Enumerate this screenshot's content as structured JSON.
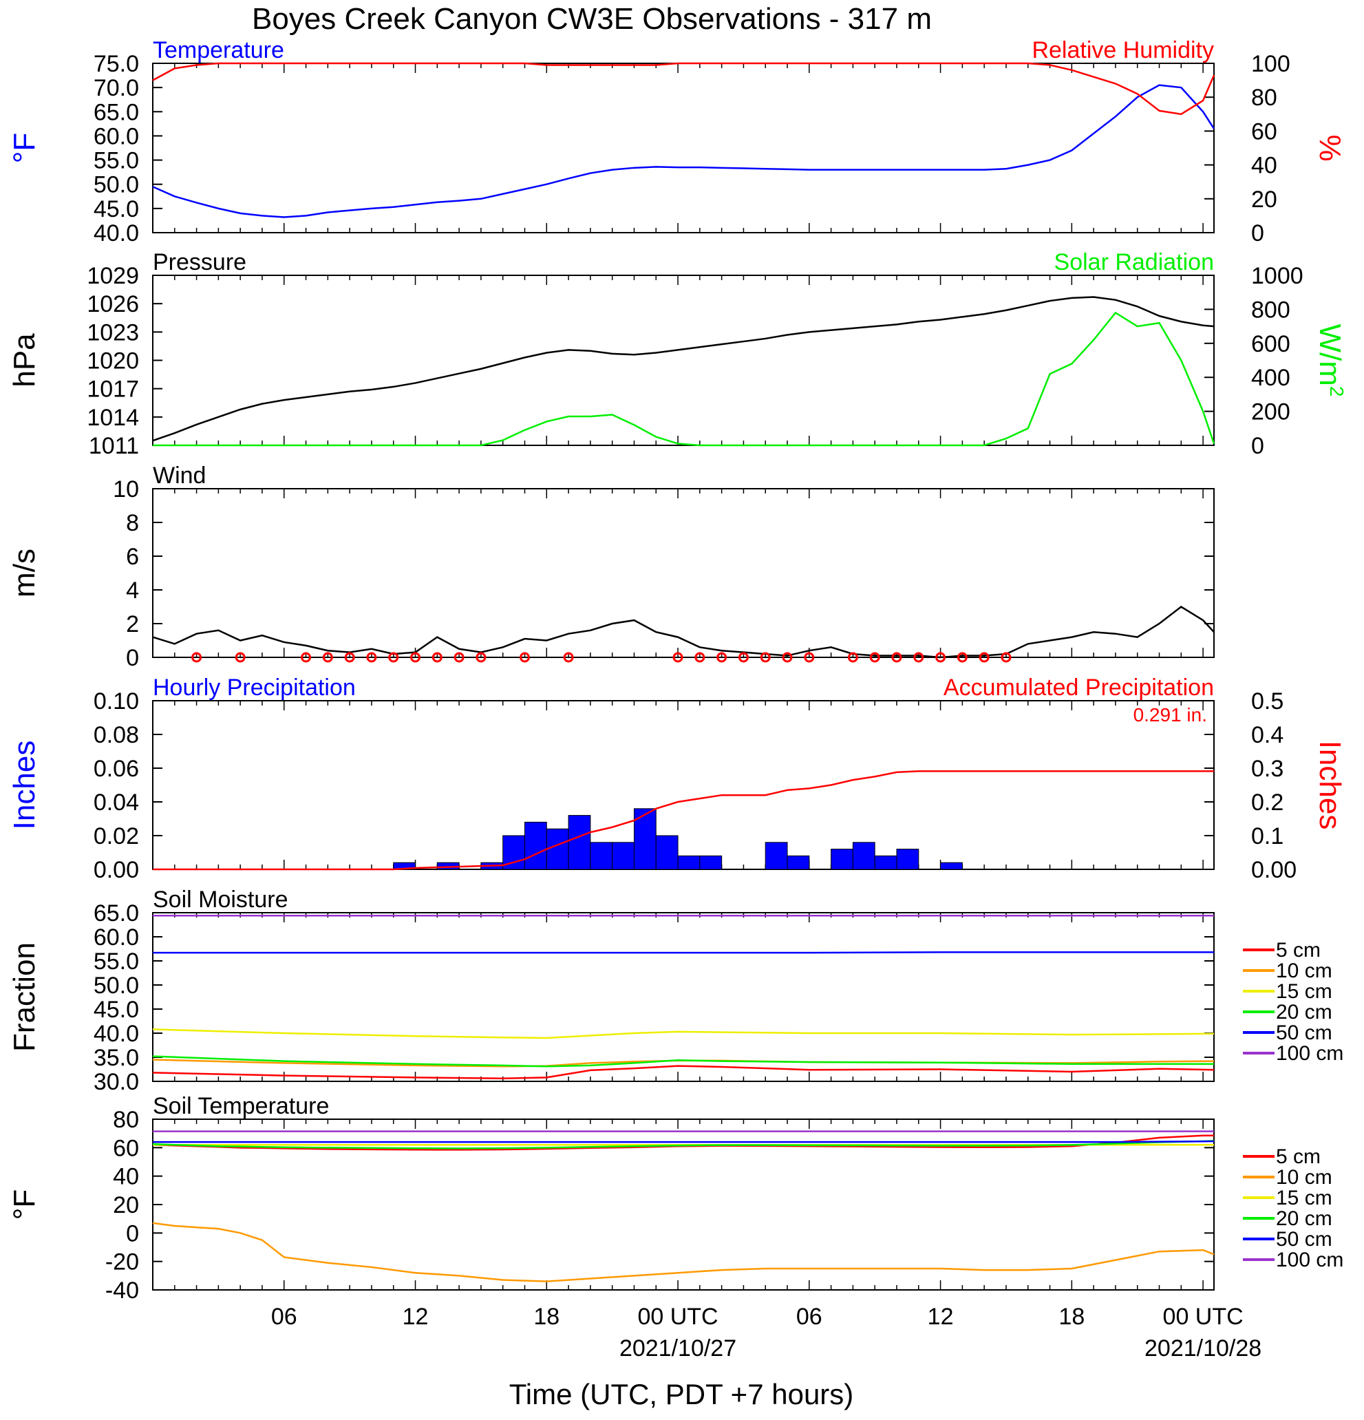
{
  "title": "Boyes Creek Canyon CW3E Observations - 317 m",
  "xlabel": "Time (UTC, PDT +7 hours)",
  "x_ticks": [
    {
      "hour": 6,
      "label": "06"
    },
    {
      "hour": 12,
      "label": "12"
    },
    {
      "hour": 18,
      "label": "18"
    },
    {
      "hour": 24,
      "label": "00 UTC",
      "date": "2021/10/27"
    },
    {
      "hour": 30,
      "label": "06"
    },
    {
      "hour": 36,
      "label": "12"
    },
    {
      "hour": 42,
      "label": "18"
    },
    {
      "hour": 48,
      "label": "00 UTC",
      "date": "2021/10/28"
    }
  ],
  "colors": {
    "blue": "#0000ff",
    "red": "#ff0000",
    "green": "#00ee00",
    "black": "#000000",
    "orange": "#ff9900",
    "yellow": "#eeee00",
    "purple": "#9933cc"
  },
  "chart_data": [
    {
      "panel": "temp_rh",
      "type": "line",
      "title_left": "Temperature",
      "title_right": "Relative Humidity",
      "ylabel_left": "°F",
      "ylabel_right": "%",
      "ylim": [
        40,
        75
      ],
      "ylim_right": [
        0,
        100
      ],
      "yticks_left": [
        "75.0",
        "70.0",
        "65.0",
        "60.0",
        "55.0",
        "50.0",
        "45.0",
        "40.0"
      ],
      "yticks_right": [
        "100",
        "80",
        "60",
        "40",
        "20",
        "0"
      ],
      "x": [
        0,
        1,
        2,
        3,
        4,
        5,
        6,
        7,
        8,
        9,
        10,
        11,
        12,
        13,
        14,
        15,
        16,
        17,
        18,
        19,
        20,
        21,
        22,
        23,
        24,
        25,
        26,
        27,
        28,
        29,
        30,
        31,
        32,
        33,
        34,
        35,
        36,
        37,
        38,
        39,
        40,
        41,
        42,
        43,
        44,
        45,
        46,
        47,
        48,
        48.5
      ],
      "series": [
        {
          "name": "Temperature",
          "axis": "left",
          "color": "blue",
          "values": [
            49.5,
            47.5,
            46.2,
            45.0,
            44.0,
            43.5,
            43.2,
            43.5,
            44.2,
            44.6,
            45.0,
            45.3,
            45.8,
            46.3,
            46.6,
            47.0,
            48.0,
            49.0,
            50.0,
            51.2,
            52.3,
            53.0,
            53.4,
            53.6,
            53.5,
            53.5,
            53.4,
            53.3,
            53.2,
            53.1,
            53.0,
            53.0,
            53.0,
            53.0,
            53.0,
            53.0,
            53.0,
            53.0,
            53.0,
            53.2,
            54.0,
            55.0,
            57.0,
            60.5,
            64.0,
            68.0,
            70.5,
            70.0,
            65.0,
            61.5
          ]
        },
        {
          "name": "Relative Humidity",
          "axis": "right",
          "color": "red",
          "values": [
            90,
            97,
            99,
            100,
            100,
            100,
            100,
            100,
            100,
            100,
            100,
            100,
            100,
            100,
            100,
            100,
            100,
            100,
            99,
            99,
            99,
            99,
            99,
            99,
            100,
            100,
            100,
            100,
            100,
            100,
            100,
            100,
            100,
            100,
            100,
            100,
            100,
            100,
            100,
            100,
            100,
            99,
            96,
            92,
            88,
            82,
            72,
            70,
            78,
            93
          ]
        }
      ]
    },
    {
      "panel": "pressure_solar",
      "type": "line",
      "title_left": "Pressure",
      "title_right": "Solar Radiation",
      "ylabel_left": "hPa",
      "ylabel_right": "W/m",
      "ylabel_right_sup": "2",
      "ylim": [
        1011,
        1029
      ],
      "ylim_right": [
        0,
        1000
      ],
      "yticks_left": [
        "1029",
        "1026",
        "1023",
        "1020",
        "1017",
        "1014",
        "1011"
      ],
      "yticks_right": [
        "1000",
        "800",
        "600",
        "400",
        "200",
        "0"
      ],
      "x": [
        0,
        1,
        2,
        3,
        4,
        5,
        6,
        7,
        8,
        9,
        10,
        11,
        12,
        13,
        14,
        15,
        16,
        17,
        18,
        19,
        20,
        21,
        22,
        23,
        24,
        25,
        26,
        27,
        28,
        29,
        30,
        31,
        32,
        33,
        34,
        35,
        36,
        37,
        38,
        39,
        40,
        41,
        42,
        43,
        44,
        45,
        46,
        47,
        48,
        48.5
      ],
      "series": [
        {
          "name": "Pressure",
          "axis": "left",
          "color": "black",
          "values": [
            1011.5,
            1012.3,
            1013.2,
            1014.0,
            1014.8,
            1015.4,
            1015.8,
            1016.1,
            1016.4,
            1016.7,
            1016.9,
            1017.2,
            1017.6,
            1018.1,
            1018.6,
            1019.1,
            1019.7,
            1020.3,
            1020.8,
            1021.1,
            1021.0,
            1020.7,
            1020.6,
            1020.8,
            1021.1,
            1021.4,
            1021.7,
            1022.0,
            1022.3,
            1022.7,
            1023.0,
            1023.2,
            1023.4,
            1023.6,
            1023.8,
            1024.1,
            1024.3,
            1024.6,
            1024.9,
            1025.3,
            1025.8,
            1026.3,
            1026.6,
            1026.7,
            1026.4,
            1025.7,
            1024.7,
            1024.1,
            1023.7,
            1023.6
          ]
        },
        {
          "name": "Solar Radiation",
          "axis": "right",
          "color": "green",
          "values": [
            0,
            0,
            0,
            0,
            0,
            0,
            0,
            0,
            0,
            0,
            0,
            0,
            0,
            0,
            0,
            0,
            30,
            90,
            140,
            170,
            170,
            180,
            120,
            50,
            10,
            0,
            0,
            0,
            0,
            0,
            0,
            0,
            0,
            0,
            0,
            0,
            0,
            0,
            0,
            40,
            100,
            420,
            480,
            620,
            780,
            700,
            720,
            500,
            200,
            10
          ]
        }
      ]
    },
    {
      "panel": "wind",
      "type": "line",
      "title_left": "Wind",
      "ylabel_left": "m/s",
      "ylim": [
        0,
        10
      ],
      "yticks_left": [
        "10",
        "8",
        "6",
        "4",
        "2",
        "0"
      ],
      "x": [
        0,
        1,
        2,
        3,
        4,
        5,
        6,
        7,
        8,
        9,
        10,
        11,
        12,
        13,
        14,
        15,
        16,
        17,
        18,
        19,
        20,
        21,
        22,
        23,
        24,
        25,
        26,
        27,
        28,
        29,
        30,
        31,
        32,
        33,
        34,
        35,
        36,
        37,
        38,
        39,
        40,
        41,
        42,
        43,
        44,
        45,
        46,
        47,
        48,
        48.5
      ],
      "series": [
        {
          "name": "Wind speed",
          "axis": "left",
          "color": "black",
          "values": [
            1.2,
            0.8,
            1.4,
            1.6,
            1.0,
            1.3,
            0.9,
            0.7,
            0.4,
            0.3,
            0.5,
            0.2,
            0.3,
            1.2,
            0.5,
            0.3,
            0.6,
            1.1,
            1.0,
            1.4,
            1.6,
            2.0,
            2.2,
            1.5,
            1.2,
            0.6,
            0.4,
            0.3,
            0.2,
            0.1,
            0.4,
            0.6,
            0.2,
            0.1,
            0.1,
            0.1,
            0.0,
            0.1,
            0.1,
            0.2,
            0.8,
            1.0,
            1.2,
            1.5,
            1.4,
            1.2,
            2.0,
            3.0,
            2.2,
            1.5
          ]
        }
      ],
      "barb_hours": [
        2,
        4,
        7,
        8,
        9,
        10,
        11,
        12,
        13,
        14,
        15,
        17,
        19,
        24,
        25,
        26,
        27,
        28,
        29,
        30,
        32,
        33,
        34,
        35,
        36,
        37,
        38,
        39
      ]
    },
    {
      "panel": "precip",
      "type": "bar",
      "title_left": "Hourly Precipitation",
      "title_right": "Accumulated Precipitation",
      "annotation": "0.291 in.",
      "ylabel_left": "Inches",
      "ylabel_right": "Inches",
      "ylim": [
        0,
        0.1
      ],
      "ylim_right": [
        0,
        0.5
      ],
      "yticks_left": [
        "0.10",
        "0.08",
        "0.06",
        "0.04",
        "0.02",
        "0.00"
      ],
      "yticks_right": [
        "0.5",
        "0.4",
        "0.3",
        "0.2",
        "0.1",
        "0.00"
      ],
      "x": [
        11,
        13,
        15,
        16,
        17,
        18,
        19,
        20,
        21,
        22,
        23,
        24,
        25,
        28,
        29,
        31,
        32,
        33,
        34,
        36
      ],
      "values": [
        0.004,
        0.004,
        0.004,
        0.02,
        0.028,
        0.024,
        0.032,
        0.016,
        0.016,
        0.036,
        0.02,
        0.008,
        0.008,
        0.016,
        0.008,
        0.012,
        0.016,
        0.008,
        0.012,
        0.004
      ],
      "accum_x": [
        0,
        11,
        12,
        16,
        17,
        18,
        19,
        20,
        21,
        22,
        23,
        24,
        25,
        26,
        28,
        29,
        30,
        31,
        32,
        33,
        34,
        35,
        48.5
      ],
      "accum_values": [
        0,
        0,
        0.004,
        0.012,
        0.03,
        0.06,
        0.085,
        0.11,
        0.125,
        0.145,
        0.18,
        0.2,
        0.21,
        0.22,
        0.22,
        0.235,
        0.24,
        0.25,
        0.265,
        0.275,
        0.288,
        0.291,
        0.291
      ]
    },
    {
      "panel": "soil_moisture",
      "type": "line",
      "title_left": "Soil Moisture",
      "ylabel_left": "Fraction",
      "ylim": [
        30,
        65
      ],
      "yticks_left": [
        "65.0",
        "60.0",
        "55.0",
        "50.0",
        "45.0",
        "40.0",
        "35.0",
        "30.0"
      ],
      "x": [
        0,
        6,
        12,
        16,
        18,
        20,
        22,
        24,
        26,
        30,
        36,
        42,
        46,
        48.5
      ],
      "legend": [
        "5 cm",
        "10 cm",
        "15 cm",
        "20 cm",
        "50 cm",
        "100 cm"
      ],
      "series": [
        {
          "name": "5 cm",
          "color": "red",
          "values": [
            31.8,
            31.2,
            30.8,
            30.6,
            30.8,
            32.3,
            32.7,
            33.2,
            33.0,
            32.4,
            32.5,
            32.0,
            32.6,
            32.4
          ]
        },
        {
          "name": "10 cm",
          "color": "orange",
          "values": [
            34.5,
            33.8,
            33.3,
            33.1,
            33.2,
            33.8,
            34.1,
            34.3,
            34.3,
            34.0,
            33.9,
            33.8,
            34.1,
            34.2
          ]
        },
        {
          "name": "15 cm",
          "color": "yellow",
          "values": [
            40.8,
            40.0,
            39.4,
            39.1,
            39.0,
            39.5,
            40.0,
            40.3,
            40.2,
            40.0,
            40.0,
            39.7,
            39.8,
            39.9
          ]
        },
        {
          "name": "20 cm",
          "color": "green",
          "values": [
            35.2,
            34.2,
            33.6,
            33.3,
            33.1,
            33.3,
            33.8,
            34.4,
            34.2,
            34.0,
            33.9,
            33.6,
            33.6,
            33.6
          ]
        },
        {
          "name": "50 cm",
          "color": "blue",
          "values": [
            56.7,
            56.7,
            56.7,
            56.7,
            56.7,
            56.7,
            56.7,
            56.7,
            56.7,
            56.7,
            56.8,
            56.8,
            56.8,
            56.8
          ]
        },
        {
          "name": "100 cm",
          "color": "purple",
          "values": [
            64.4,
            64.4,
            64.4,
            64.4,
            64.4,
            64.4,
            64.4,
            64.4,
            64.4,
            64.4,
            64.4,
            64.4,
            64.4,
            64.4
          ]
        }
      ]
    },
    {
      "panel": "soil_temp",
      "type": "line",
      "title_left": "Soil Temperature",
      "ylabel_left": "°F",
      "ylim": [
        -40,
        80
      ],
      "yticks_left": [
        "80",
        "60",
        "40",
        "20",
        "0",
        "-20",
        "-40"
      ],
      "x": [
        0,
        1,
        2,
        3,
        4,
        5,
        6,
        8,
        10,
        12,
        14,
        16,
        18,
        20,
        22,
        24,
        26,
        28,
        30,
        32,
        34,
        36,
        38,
        40,
        42,
        44,
        46,
        48,
        48.5
      ],
      "legend": [
        "5 cm",
        "10 cm",
        "15 cm",
        "20 cm",
        "50 cm",
        "100 cm"
      ],
      "series": [
        {
          "name": "5 cm",
          "color": "red",
          "values": [
            62,
            61.5,
            61,
            60.5,
            60,
            59.8,
            59.5,
            59.0,
            58.8,
            58.6,
            58.5,
            58.7,
            59.2,
            59.8,
            60.3,
            61.0,
            61.3,
            61.2,
            61.0,
            60.8,
            60.6,
            60.4,
            60.3,
            60.4,
            61.0,
            63.5,
            67.0,
            68.5,
            68.5
          ]
        },
        {
          "name": "10 cm",
          "color": "orange",
          "values": [
            7,
            5,
            4,
            3,
            0,
            -5,
            -17,
            -21,
            -24,
            -28,
            -30,
            -33,
            -34,
            -32,
            -30,
            -28,
            -26,
            -25,
            -25,
            -25,
            -25,
            -25,
            -26,
            -26,
            -25,
            -19,
            -13,
            -12,
            -15
          ]
        },
        {
          "name": "15 cm",
          "color": "yellow",
          "values": [
            62,
            62,
            62,
            62,
            62,
            62,
            62,
            62,
            62,
            62,
            62,
            62,
            62,
            62,
            62,
            62,
            62,
            62,
            62,
            62,
            62,
            62,
            62,
            62,
            62,
            62,
            62,
            62,
            62
          ]
        },
        {
          "name": "20 cm",
          "color": "green",
          "values": [
            62.5,
            62,
            61.5,
            61,
            60.8,
            60.5,
            60.3,
            60.0,
            59.8,
            59.6,
            59.5,
            59.6,
            60.0,
            60.5,
            61.0,
            61.5,
            61.8,
            61.8,
            61.7,
            61.6,
            61.5,
            61.4,
            61.4,
            61.5,
            61.9,
            62.8,
            63.8,
            64.5,
            64.8
          ]
        },
        {
          "name": "50 cm",
          "color": "blue",
          "values": [
            64,
            64,
            64,
            64,
            64,
            64,
            64,
            64,
            64,
            64,
            64,
            64,
            64,
            64,
            64,
            64,
            64,
            64,
            64,
            64,
            64,
            64,
            64,
            64,
            64,
            64,
            64.2,
            64.4,
            64.5
          ]
        },
        {
          "name": "100 cm",
          "color": "purple",
          "values": [
            71.5,
            71.5,
            71.5,
            71.5,
            71.5,
            71.5,
            71.5,
            71.5,
            71.5,
            71.5,
            71.5,
            71.5,
            71.5,
            71.5,
            71.5,
            71.5,
            71.5,
            71.5,
            71.5,
            71.5,
            71.5,
            71.5,
            71.5,
            71.5,
            71.5,
            71.5,
            71.5,
            71.5,
            71.5
          ]
        }
      ]
    }
  ]
}
